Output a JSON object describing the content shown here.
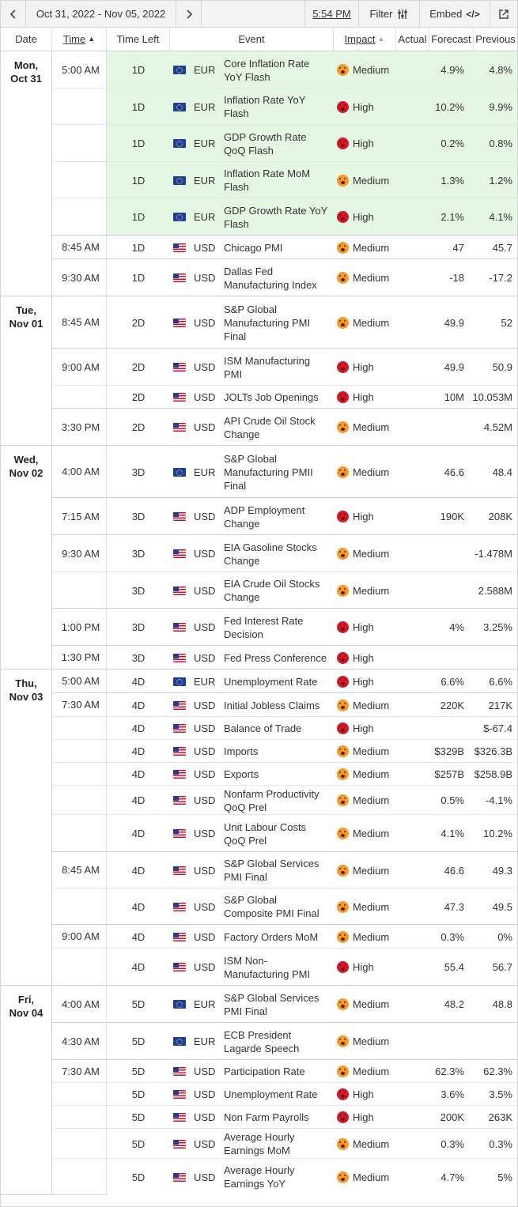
{
  "toolbar": {
    "date_range": "Oct 31, 2022 - Nov 05, 2022",
    "time": "5:54 PM",
    "filter_label": "Filter",
    "embed_label": "Embed",
    "embed_tag": "</>"
  },
  "headers": {
    "date": "Date",
    "time": "Time",
    "time_left": "Time Left",
    "event": "Event",
    "impact": "Impact",
    "actual": "Actual",
    "forecast": "Forecast",
    "previous": "Previous"
  },
  "days": [
    {
      "dow": "Mon,",
      "date": "Oct 31"
    },
    {
      "dow": "Tue,",
      "date": "Nov 01"
    },
    {
      "dow": "Wed,",
      "date": "Nov 02"
    },
    {
      "dow": "Thu,",
      "date": "Nov 03"
    },
    {
      "dow": "Fri,",
      "date": "Nov 04"
    }
  ],
  "times": [
    "5:00 AM",
    "8:45 AM",
    "9:30 AM",
    "8:45 AM",
    "9:00 AM",
    "3:30 PM",
    "4:00 AM",
    "7:15 AM",
    "9:30 AM",
    "1:00 PM",
    "1:30 PM",
    "5:00 AM",
    "7:30 AM",
    "8:45 AM",
    "9:00 AM",
    "4:00 AM",
    "4:30 AM",
    "7:30 AM"
  ],
  "events": [
    {
      "left": "1D",
      "cur": "EUR",
      "flag": "eu",
      "name": [
        "Core Inflation Rate",
        "YoY Flash"
      ],
      "impact": "Medium",
      "level": "medium",
      "actual": "",
      "forecast": "4.9%",
      "previous": "4.8%"
    },
    {
      "left": "1D",
      "cur": "EUR",
      "flag": "eu",
      "name": [
        "Inflation Rate YoY",
        "Flash"
      ],
      "impact": "High",
      "level": "high",
      "actual": "",
      "forecast": "10.2%",
      "previous": "9.9%"
    },
    {
      "left": "1D",
      "cur": "EUR",
      "flag": "eu",
      "name": [
        "GDP Growth Rate",
        "QoQ Flash"
      ],
      "impact": "High",
      "level": "high",
      "actual": "",
      "forecast": "0.2%",
      "previous": "0.8%"
    },
    {
      "left": "1D",
      "cur": "EUR",
      "flag": "eu",
      "name": [
        "Inflation Rate MoM",
        "Flash"
      ],
      "impact": "Medium",
      "level": "medium",
      "actual": "",
      "forecast": "1.3%",
      "previous": "1.2%"
    },
    {
      "left": "1D",
      "cur": "EUR",
      "flag": "eu",
      "name": [
        "GDP Growth Rate YoY",
        "Flash"
      ],
      "impact": "High",
      "level": "high",
      "actual": "",
      "forecast": "2.1%",
      "previous": "4.1%"
    },
    {
      "left": "1D",
      "cur": "USD",
      "flag": "us",
      "name": [
        "Chicago PMI"
      ],
      "impact": "Medium",
      "level": "medium",
      "actual": "",
      "forecast": "47",
      "previous": "45.7"
    },
    {
      "left": "1D",
      "cur": "USD",
      "flag": "us",
      "name": [
        "Dallas Fed",
        "Manufacturing Index"
      ],
      "impact": "Medium",
      "level": "medium",
      "actual": "",
      "forecast": "-18",
      "previous": "-17.2"
    },
    {
      "left": "2D",
      "cur": "USD",
      "flag": "us",
      "name": [
        "S&P Global",
        "Manufacturing PMI",
        "Final"
      ],
      "impact": "Medium",
      "level": "medium",
      "actual": "",
      "forecast": "49.9",
      "previous": "52"
    },
    {
      "left": "2D",
      "cur": "USD",
      "flag": "us",
      "name": [
        "ISM Manufacturing",
        "PMI"
      ],
      "impact": "High",
      "level": "high",
      "actual": "",
      "forecast": "49.9",
      "previous": "50.9"
    },
    {
      "left": "2D",
      "cur": "USD",
      "flag": "us",
      "name": [
        "JOLTs Job Openings"
      ],
      "impact": "High",
      "level": "high",
      "actual": "",
      "forecast": "10M",
      "previous": "10.053M"
    },
    {
      "left": "2D",
      "cur": "USD",
      "flag": "us",
      "name": [
        "API Crude Oil Stock",
        "Change"
      ],
      "impact": "Medium",
      "level": "medium",
      "actual": "",
      "forecast": "",
      "previous": "4.52M"
    },
    {
      "left": "3D",
      "cur": "EUR",
      "flag": "eu",
      "name": [
        "S&P Global",
        "Manufacturing PMII",
        "Final"
      ],
      "impact": "Medium",
      "level": "medium",
      "actual": "",
      "forecast": "46.6",
      "previous": "48.4"
    },
    {
      "left": "3D",
      "cur": "USD",
      "flag": "us",
      "name": [
        "ADP Employment",
        "Change"
      ],
      "impact": "High",
      "level": "high",
      "actual": "",
      "forecast": "190K",
      "previous": "208K"
    },
    {
      "left": "3D",
      "cur": "USD",
      "flag": "us",
      "name": [
        "EIA Gasoline Stocks",
        "Change"
      ],
      "impact": "Medium",
      "level": "medium",
      "actual": "",
      "forecast": "",
      "previous": "-1.478M"
    },
    {
      "left": "3D",
      "cur": "USD",
      "flag": "us",
      "name": [
        "EIA Crude Oil Stocks",
        "Change"
      ],
      "impact": "Medium",
      "level": "medium",
      "actual": "",
      "forecast": "",
      "previous": "2.588M"
    },
    {
      "left": "3D",
      "cur": "USD",
      "flag": "us",
      "name": [
        "Fed Interest Rate",
        "Decision"
      ],
      "impact": "High",
      "level": "high",
      "actual": "",
      "forecast": "4%",
      "previous": "3.25%"
    },
    {
      "left": "3D",
      "cur": "USD",
      "flag": "us",
      "name": [
        "Fed Press Conference"
      ],
      "impact": "High",
      "level": "high",
      "actual": "",
      "forecast": "",
      "previous": ""
    },
    {
      "left": "4D",
      "cur": "EUR",
      "flag": "eu",
      "name": [
        "Unemployment Rate"
      ],
      "impact": "High",
      "level": "high",
      "actual": "",
      "forecast": "6.6%",
      "previous": "6.6%"
    },
    {
      "left": "4D",
      "cur": "USD",
      "flag": "us",
      "name": [
        "Initial Jobless Claims"
      ],
      "impact": "Medium",
      "level": "medium",
      "actual": "",
      "forecast": "220K",
      "previous": "217K"
    },
    {
      "left": "4D",
      "cur": "USD",
      "flag": "us",
      "name": [
        "Balance of Trade"
      ],
      "impact": "High",
      "level": "high",
      "actual": "",
      "forecast": "",
      "previous": "$-67.4"
    },
    {
      "left": "4D",
      "cur": "USD",
      "flag": "us",
      "name": [
        "Imports"
      ],
      "impact": "Medium",
      "level": "medium",
      "actual": "",
      "forecast": "$329B",
      "previous": "$326.3B"
    },
    {
      "left": "4D",
      "cur": "USD",
      "flag": "us",
      "name": [
        "Exports"
      ],
      "impact": "Medium",
      "level": "medium",
      "actual": "",
      "forecast": "$257B",
      "previous": "$258.9B"
    },
    {
      "left": "4D",
      "cur": "USD",
      "flag": "us",
      "name": [
        "Nonfarm Productivity",
        "QoQ Prel"
      ],
      "impact": "Medium",
      "level": "medium",
      "actual": "",
      "forecast": "0.5%",
      "previous": "-4.1%"
    },
    {
      "left": "4D",
      "cur": "USD",
      "flag": "us",
      "name": [
        "Unit Labour Costs",
        "QoQ Prel"
      ],
      "impact": "Medium",
      "level": "medium",
      "actual": "",
      "forecast": "4.1%",
      "previous": "10.2%"
    },
    {
      "left": "4D",
      "cur": "USD",
      "flag": "us",
      "name": [
        "S&P Global Services",
        "PMI Final"
      ],
      "impact": "Medium",
      "level": "medium",
      "actual": "",
      "forecast": "46.6",
      "previous": "49.3"
    },
    {
      "left": "4D",
      "cur": "USD",
      "flag": "us",
      "name": [
        "S&P Global",
        "Composite PMI Final"
      ],
      "impact": "Medium",
      "level": "medium",
      "actual": "",
      "forecast": "47.3",
      "previous": "49.5"
    },
    {
      "left": "4D",
      "cur": "USD",
      "flag": "us",
      "name": [
        "Factory Orders MoM"
      ],
      "impact": "Medium",
      "level": "medium",
      "actual": "",
      "forecast": "0.3%",
      "previous": "0%"
    },
    {
      "left": "4D",
      "cur": "USD",
      "flag": "us",
      "name": [
        "ISM Non-",
        "Manufacturing PMI"
      ],
      "impact": "High",
      "level": "high",
      "actual": "",
      "forecast": "55.4",
      "previous": "56.7"
    },
    {
      "left": "5D",
      "cur": "EUR",
      "flag": "eu",
      "name": [
        "S&P Global Services",
        "PMI Final"
      ],
      "impact": "Medium",
      "level": "medium",
      "actual": "",
      "forecast": "48.2",
      "previous": "48.8"
    },
    {
      "left": "5D",
      "cur": "EUR",
      "flag": "eu",
      "name": [
        "ECB President",
        "Lagarde Speech"
      ],
      "impact": "Medium",
      "level": "medium",
      "actual": "",
      "forecast": "",
      "previous": ""
    },
    {
      "left": "5D",
      "cur": "USD",
      "flag": "us",
      "name": [
        "Participation Rate"
      ],
      "impact": "Medium",
      "level": "medium",
      "actual": "",
      "forecast": "62.3%",
      "previous": "62.3%"
    },
    {
      "left": "5D",
      "cur": "USD",
      "flag": "us",
      "name": [
        "Unemployment Rate"
      ],
      "impact": "High",
      "level": "high",
      "actual": "",
      "forecast": "3.6%",
      "previous": "3.5%"
    },
    {
      "left": "5D",
      "cur": "USD",
      "flag": "us",
      "name": [
        "Non Farm Payrolls"
      ],
      "impact": "High",
      "level": "high",
      "actual": "",
      "forecast": "200K",
      "previous": "263K"
    },
    {
      "left": "5D",
      "cur": "USD",
      "flag": "us",
      "name": [
        "Average Hourly",
        "Earnings MoM"
      ],
      "impact": "Medium",
      "level": "medium",
      "actual": "",
      "forecast": "0.3%",
      "previous": "0.3%"
    },
    {
      "left": "5D",
      "cur": "USD",
      "flag": "us",
      "name": [
        "Average Hourly",
        "Earnings YoY"
      ],
      "impact": "Medium",
      "level": "medium",
      "actual": "",
      "forecast": "4.7%",
      "previous": "5%"
    }
  ]
}
